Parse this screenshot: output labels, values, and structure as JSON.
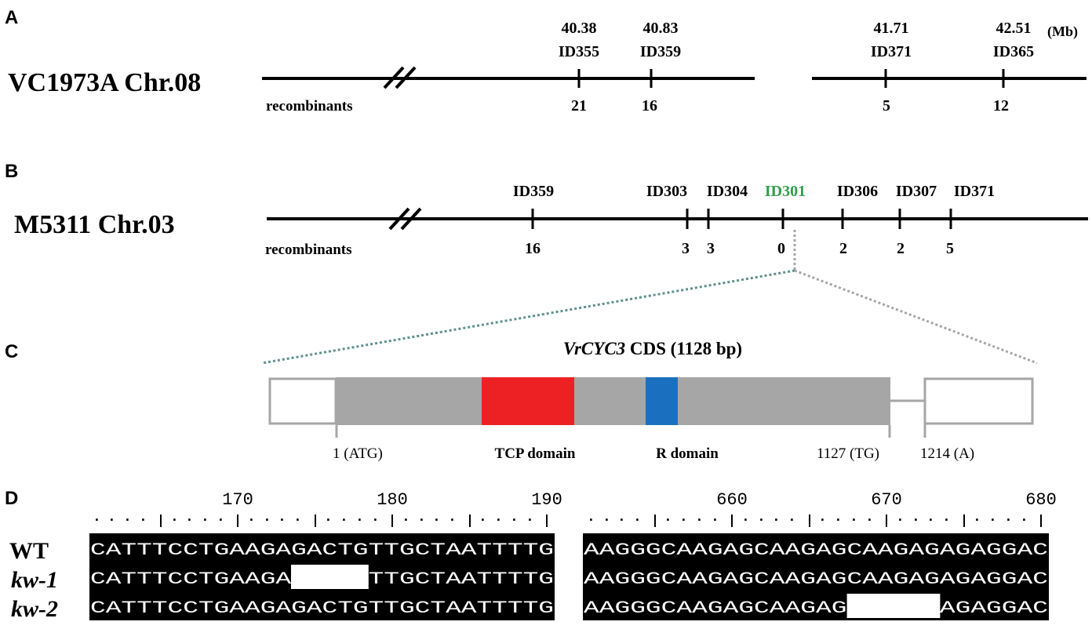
{
  "panels": {
    "A": {
      "letter": "A",
      "chromosome": "VC1973A Chr.08",
      "unit": "(Mb)",
      "recombinants_label": "recombinants",
      "markers": [
        {
          "pos": "40.38",
          "id": "ID355",
          "rec": "21"
        },
        {
          "pos": "40.83",
          "id": "ID359",
          "rec": "16"
        },
        {
          "pos": "41.71",
          "id": "ID371",
          "rec": "5"
        },
        {
          "pos": "42.51",
          "id": "ID365",
          "rec": "12"
        }
      ]
    },
    "B": {
      "letter": "B",
      "chromosome": "M5311 Chr.03",
      "recombinants_label": "recombinants",
      "markers": [
        {
          "id": "ID359",
          "rec": "16"
        },
        {
          "id": "ID303",
          "rec": "3"
        },
        {
          "id": "ID304",
          "rec": "3"
        },
        {
          "id": "ID301",
          "rec": "0"
        },
        {
          "id": "ID306",
          "rec": "2"
        },
        {
          "id": "ID307",
          "rec": "2"
        },
        {
          "id": "ID371",
          "rec": "5"
        }
      ],
      "highlight_color": "#2e9e4a"
    },
    "C": {
      "letter": "C",
      "title_italic": "VrCYC3",
      "title_rest": " CDS (1128 bp)",
      "labels": {
        "start": "1 (ATG)",
        "tcp": "TCP domain",
        "r": "R domain",
        "stop": "1127 (TG)",
        "end": "1214 (A)"
      },
      "colors": {
        "cds": "#a6a6a6",
        "tcp": "#ed2024",
        "r": "#1a70be",
        "outline": "#a6a6a6"
      }
    },
    "D": {
      "letter": "D",
      "rows": [
        "WT",
        "kw-1",
        "kw-2"
      ],
      "left": {
        "ticks": [
          "170",
          "180",
          "190"
        ],
        "seqs": [
          "CATTTCCTGAAGAGACTGTTGCTAATTTTG",
          "CATTTCCTGAAGA-----TTGCTAATTTTG",
          "CATTTCCTGAAGAGACTGTTGCTAATTTTG"
        ]
      },
      "right": {
        "ticks": [
          "660",
          "670",
          "680"
        ],
        "seqs": [
          "AAGGGCAAGAGCAAGAGCAAGAGAGAGGAC",
          "AAGGGCAAGAGCAAGAGCAAGAGAGAGGAC",
          "AAGGGCAAGAGCAAGAG------AGAGGAC"
        ]
      }
    }
  }
}
